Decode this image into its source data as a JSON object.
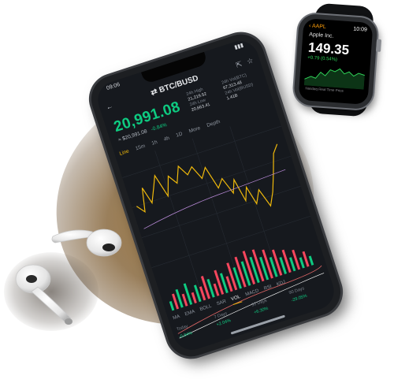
{
  "phone": {
    "status_time": "09:06",
    "pair": "BTC/BUSD",
    "price": "20,991.08",
    "price_usd": "≈ $20,991.08",
    "change_pct": "-0.84%",
    "stats": [
      {
        "k": "24h High",
        "v": "21,219.52"
      },
      {
        "k": "24h Vol(BTC)",
        "v": "67,313.48"
      },
      {
        "k": "24h Low",
        "v": "20,663.41"
      },
      {
        "k": "24h Vol(BUSD)",
        "v": "1.41B"
      }
    ],
    "time_tabs": [
      "Line",
      "15m",
      "1h",
      "4h",
      "1D",
      "More",
      "Depth"
    ],
    "active_time_tab": "Line",
    "indicator_tabs": [
      "MA",
      "EMA",
      "BOLL",
      "SAR",
      "VOL",
      "MACD",
      "RSI",
      "KDJ"
    ],
    "active_indicator_tab": "VOL",
    "bottom_stats": [
      {
        "k": "Today",
        "v": "-0.84%"
      },
      {
        "k": "7 Days",
        "v": "+2.04%"
      },
      {
        "k": "30 Days",
        "v": "+6.30%"
      },
      {
        "k": "90 Days",
        "v": "-29.05%"
      }
    ],
    "price_line_color": "#f0b90b"
  },
  "watch": {
    "back_label": "AAPL",
    "time": "10:09",
    "name": "Apple Inc.",
    "price": "149.35",
    "change": "+0.79 (0.54%)",
    "note": "Nasdaq Real Time Price",
    "accent_color": "#30d158"
  }
}
